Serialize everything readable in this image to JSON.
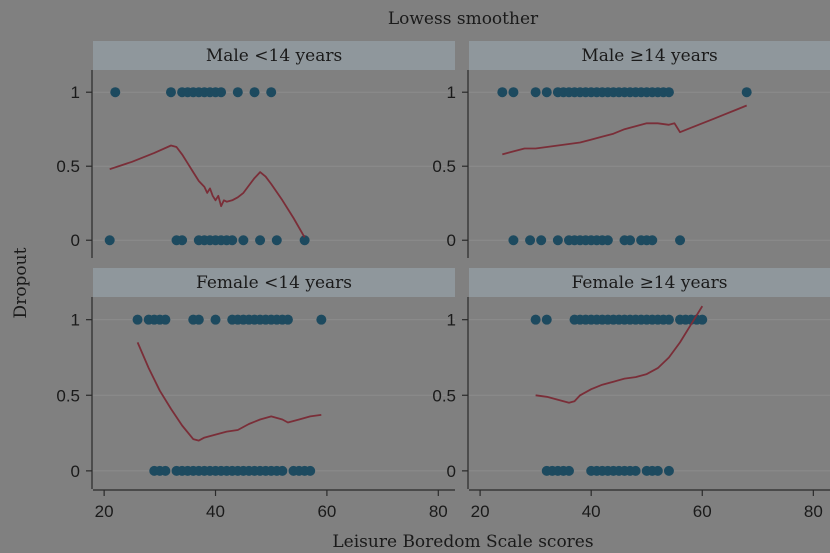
{
  "colors": {
    "background": "#808080",
    "strip": "#8f979c",
    "grid": "#8c8c8c",
    "axis": "#2a2a2a",
    "point": "#1d4a5f",
    "line": "#7a2e38",
    "text": "#1a1a1a"
  },
  "chart_data": {
    "type": "scatter",
    "title": "Lowess smoother",
    "xlabel": "Leisure Boredom Scale scores",
    "ylabel": "Dropout",
    "xlim": [
      18,
      83
    ],
    "ylim": [
      -0.12,
      1.15
    ],
    "x_ticks": [
      20,
      40,
      60,
      80
    ],
    "y_ticks": [
      0,
      0.5,
      1
    ],
    "y_tick_labels": [
      "0",
      "0.5",
      "1"
    ],
    "grid": true,
    "panels": [
      {
        "title": "Male <14 years",
        "points_y1": [
          22,
          32,
          34,
          35,
          36,
          37,
          38,
          39,
          40,
          41,
          44,
          47,
          50
        ],
        "points_y0": [
          21,
          33,
          34,
          37,
          38,
          39,
          40,
          41,
          42,
          43,
          45,
          48,
          51,
          56
        ],
        "lowess": [
          [
            21,
            0.48
          ],
          [
            25,
            0.53
          ],
          [
            29,
            0.59
          ],
          [
            32,
            0.64
          ],
          [
            33,
            0.63
          ],
          [
            34,
            0.58
          ],
          [
            35,
            0.52
          ],
          [
            36,
            0.46
          ],
          [
            37,
            0.4
          ],
          [
            38,
            0.36
          ],
          [
            38.5,
            0.32
          ],
          [
            39,
            0.35
          ],
          [
            39.5,
            0.3
          ],
          [
            40,
            0.27
          ],
          [
            40.5,
            0.3
          ],
          [
            41,
            0.23
          ],
          [
            41.5,
            0.27
          ],
          [
            42,
            0.26
          ],
          [
            43,
            0.27
          ],
          [
            44,
            0.29
          ],
          [
            45,
            0.32
          ],
          [
            46,
            0.37
          ],
          [
            47,
            0.42
          ],
          [
            48,
            0.46
          ],
          [
            49,
            0.43
          ],
          [
            50,
            0.38
          ],
          [
            52,
            0.27
          ],
          [
            54,
            0.15
          ],
          [
            56,
            0.02
          ]
        ]
      },
      {
        "title": "Male ≥14 years",
        "points_y1": [
          24,
          26,
          30,
          32,
          34,
          35,
          36,
          37,
          38,
          39,
          40,
          41,
          42,
          43,
          44,
          45,
          46,
          47,
          48,
          49,
          50,
          51,
          52,
          53,
          54,
          68
        ],
        "points_y0": [
          26,
          29,
          31,
          34,
          36,
          37,
          38,
          39,
          40,
          41,
          42,
          43,
          46,
          47,
          49,
          50,
          51,
          56
        ],
        "lowess": [
          [
            24,
            0.58
          ],
          [
            26,
            0.6
          ],
          [
            28,
            0.62
          ],
          [
            30,
            0.62
          ],
          [
            32,
            0.63
          ],
          [
            34,
            0.64
          ],
          [
            36,
            0.65
          ],
          [
            38,
            0.66
          ],
          [
            40,
            0.68
          ],
          [
            42,
            0.7
          ],
          [
            44,
            0.72
          ],
          [
            46,
            0.75
          ],
          [
            48,
            0.77
          ],
          [
            50,
            0.79
          ],
          [
            52,
            0.79
          ],
          [
            54,
            0.78
          ],
          [
            55,
            0.79
          ],
          [
            56,
            0.73
          ],
          [
            58,
            0.76
          ],
          [
            60,
            0.79
          ],
          [
            62,
            0.82
          ],
          [
            64,
            0.85
          ],
          [
            66,
            0.88
          ],
          [
            68,
            0.91
          ]
        ]
      },
      {
        "title": "Female <14 years",
        "points_y1": [
          26,
          28,
          29,
          30,
          31,
          36,
          37,
          40,
          43,
          44,
          45,
          46,
          47,
          48,
          49,
          50,
          51,
          52,
          53,
          59
        ],
        "points_y0": [
          29,
          30,
          31,
          33,
          34,
          35,
          36,
          37,
          38,
          39,
          40,
          41,
          42,
          43,
          44,
          45,
          46,
          47,
          48,
          49,
          50,
          51,
          52,
          54,
          55,
          56,
          57
        ],
        "lowess": [
          [
            26,
            0.85
          ],
          [
            28,
            0.68
          ],
          [
            30,
            0.53
          ],
          [
            32,
            0.41
          ],
          [
            34,
            0.3
          ],
          [
            36,
            0.21
          ],
          [
            37,
            0.2
          ],
          [
            38,
            0.22
          ],
          [
            40,
            0.24
          ],
          [
            42,
            0.26
          ],
          [
            44,
            0.27
          ],
          [
            46,
            0.31
          ],
          [
            48,
            0.34
          ],
          [
            50,
            0.36
          ],
          [
            52,
            0.34
          ],
          [
            53,
            0.32
          ],
          [
            55,
            0.34
          ],
          [
            57,
            0.36
          ],
          [
            59,
            0.37
          ]
        ]
      },
      {
        "title": "Female ≥14 years",
        "points_y1": [
          30,
          32,
          37,
          38,
          39,
          40,
          41,
          42,
          43,
          44,
          45,
          46,
          47,
          48,
          49,
          50,
          51,
          52,
          53,
          54,
          56,
          57,
          58,
          59,
          60
        ],
        "points_y0": [
          32,
          33,
          34,
          35,
          36,
          40,
          41,
          42,
          43,
          44,
          45,
          46,
          47,
          48,
          50,
          51,
          52,
          54
        ],
        "lowess": [
          [
            30,
            0.5
          ],
          [
            32,
            0.49
          ],
          [
            34,
            0.47
          ],
          [
            36,
            0.45
          ],
          [
            37,
            0.46
          ],
          [
            38,
            0.5
          ],
          [
            40,
            0.54
          ],
          [
            42,
            0.57
          ],
          [
            44,
            0.59
          ],
          [
            46,
            0.61
          ],
          [
            48,
            0.62
          ],
          [
            50,
            0.64
          ],
          [
            52,
            0.68
          ],
          [
            54,
            0.75
          ],
          [
            56,
            0.85
          ],
          [
            58,
            0.97
          ],
          [
            60,
            1.09
          ]
        ]
      }
    ]
  }
}
